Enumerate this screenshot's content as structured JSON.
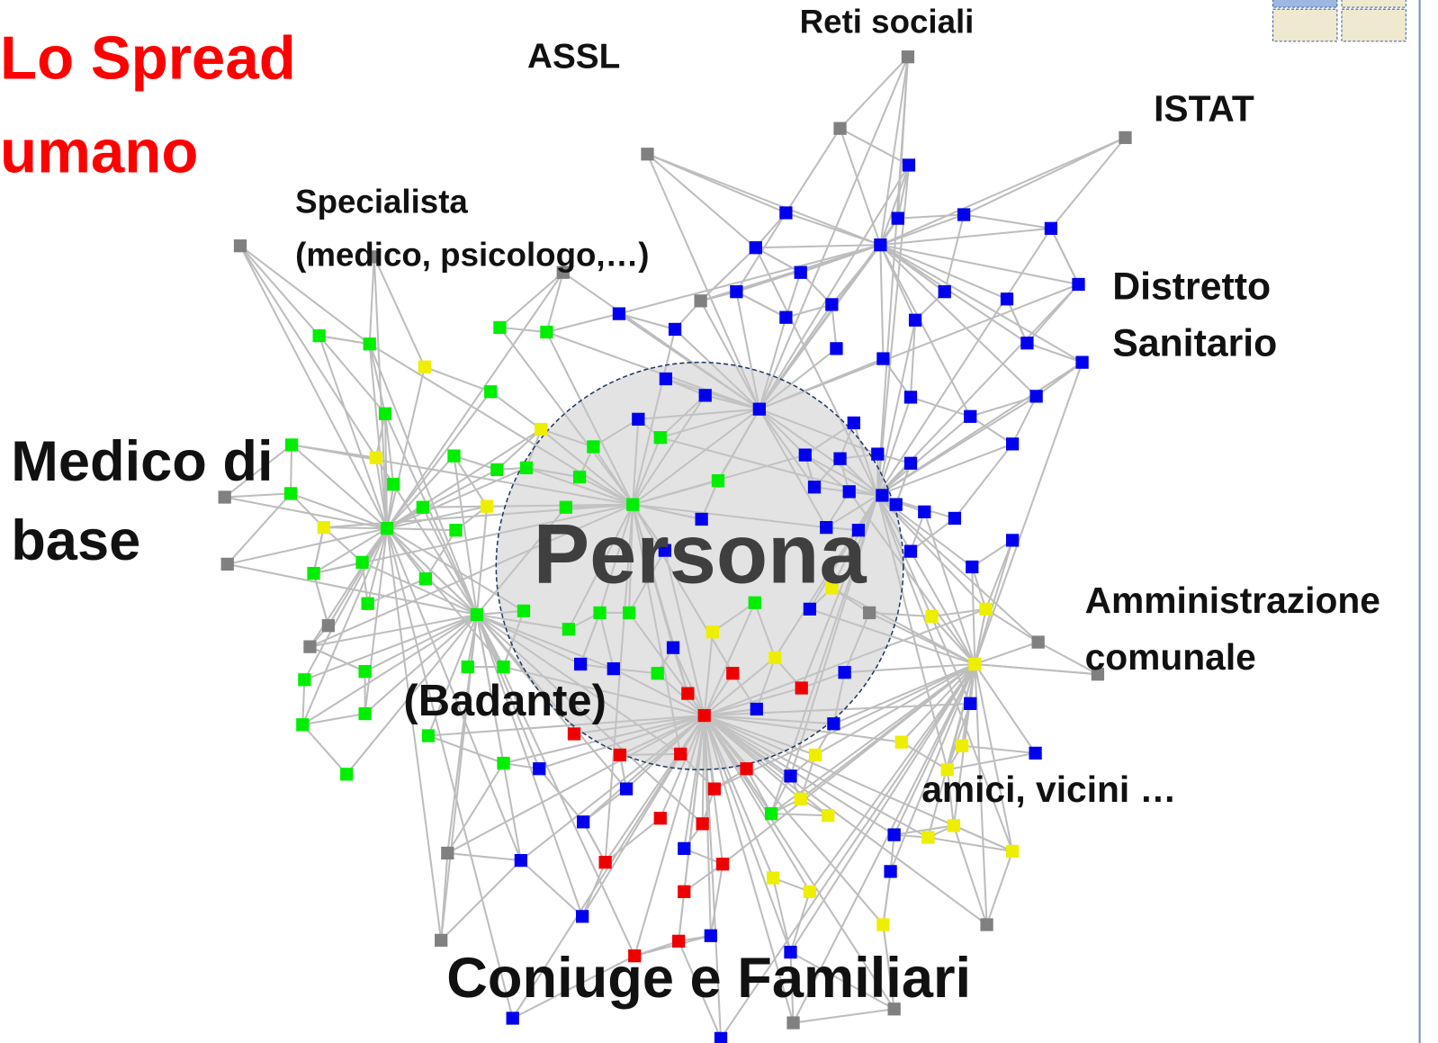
{
  "title": [
    "Lo Spread",
    "umano"
  ],
  "center_label": "Persona",
  "labels": [
    {
      "lines": [
        "ASSL"
      ]
    },
    {
      "lines": [
        "Reti sociali"
      ]
    },
    {
      "lines": [
        "ISTAT"
      ]
    },
    {
      "lines": [
        "Specialista",
        "(medico, psicologo,…)"
      ]
    },
    {
      "lines": [
        "Distretto",
        "Sanitario"
      ]
    },
    {
      "lines": [
        "Medico di",
        "base"
      ]
    },
    {
      "lines": [
        "Amministrazione",
        "comunale"
      ]
    },
    {
      "lines": [
        "(Badante)"
      ]
    },
    {
      "lines": [
        "amici, vicini …"
      ]
    },
    {
      "lines": [
        "Coniuge e Familiari"
      ]
    }
  ]
}
